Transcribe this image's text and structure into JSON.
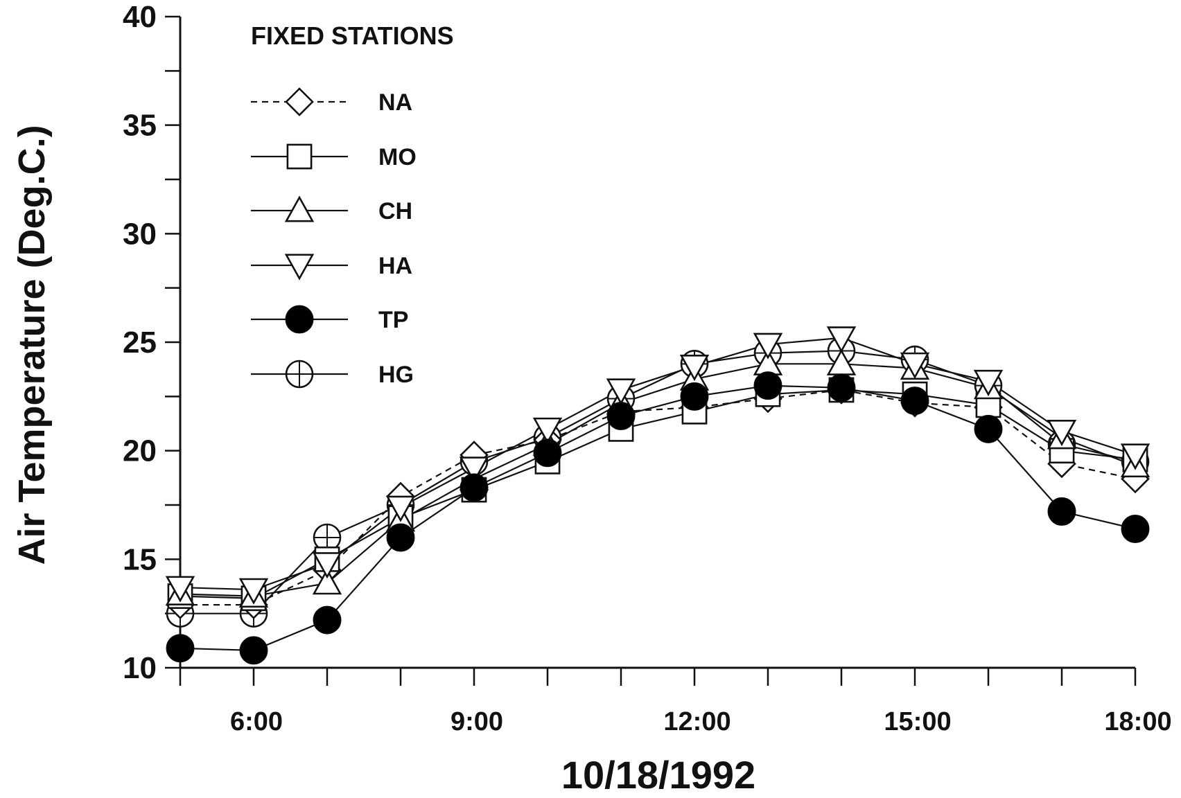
{
  "chart_data": {
    "type": "line",
    "xlabel": "10/18/1992",
    "ylabel": "Air Temperature (Deg.C.)",
    "x_unit": "hour of day",
    "xlim": [
      5,
      18
    ],
    "ylim": [
      10,
      40
    ],
    "x_ticks": [
      {
        "value": 6,
        "label": "6:00"
      },
      {
        "value": 9,
        "label": "9:00"
      },
      {
        "value": 12,
        "label": "12:00"
      },
      {
        "value": 15,
        "label": "15:00"
      },
      {
        "value": 18,
        "label": "18:00"
      }
    ],
    "y_ticks": [
      {
        "value": 10,
        "label": "10"
      },
      {
        "value": 15,
        "label": "15"
      },
      {
        "value": 20,
        "label": "20"
      },
      {
        "value": 25,
        "label": "25"
      },
      {
        "value": 30,
        "label": "30"
      },
      {
        "value": 35,
        "label": "35"
      },
      {
        "value": 40,
        "label": "40"
      }
    ],
    "x_minor_step": 1,
    "y_minor_step": 2.5,
    "grid": false,
    "legend": {
      "title": "FIXED STATIONS",
      "position": "top-left"
    },
    "series": [
      {
        "name": "NA",
        "marker": "diamond-open",
        "line": "dashed",
        "x": [
          5,
          6,
          7,
          8,
          9,
          10,
          11,
          12,
          13,
          14,
          15,
          16,
          17,
          18
        ],
        "values": [
          12.9,
          12.9,
          14.5,
          17.9,
          19.8,
          20.5,
          21.8,
          22.0,
          22.4,
          22.8,
          22.2,
          22.0,
          19.4,
          18.7
        ]
      },
      {
        "name": "MO",
        "marker": "square-open",
        "line": "solid",
        "x": [
          5,
          6,
          7,
          8,
          9,
          10,
          11,
          12,
          13,
          14,
          15,
          16,
          17,
          18
        ],
        "values": [
          13.3,
          13.2,
          15.0,
          16.9,
          18.2,
          19.5,
          21.0,
          21.8,
          22.6,
          22.8,
          22.6,
          22.1,
          20.0,
          19.6
        ]
      },
      {
        "name": "CH",
        "marker": "triangle-up-open",
        "line": "solid",
        "x": [
          5,
          6,
          7,
          8,
          9,
          10,
          11,
          12,
          13,
          14,
          15,
          16,
          17,
          18
        ],
        "values": [
          13.4,
          13.3,
          13.9,
          16.8,
          18.7,
          20.3,
          22.2,
          23.3,
          24.0,
          24.0,
          23.8,
          22.9,
          20.6,
          19.3
        ]
      },
      {
        "name": "HA",
        "marker": "triangle-down-open",
        "line": "solid",
        "x": [
          5,
          6,
          7,
          8,
          9,
          10,
          11,
          12,
          13,
          14,
          15,
          16,
          17,
          18
        ],
        "values": [
          13.7,
          13.6,
          14.8,
          17.4,
          19.2,
          21.0,
          22.8,
          23.9,
          24.9,
          25.2,
          24.0,
          23.2,
          20.9,
          19.8
        ]
      },
      {
        "name": "TP",
        "marker": "circle-filled",
        "line": "solid",
        "x": [
          5,
          6,
          7,
          8,
          9,
          10,
          11,
          12,
          13,
          14,
          15,
          16,
          17,
          18
        ],
        "values": [
          10.9,
          10.8,
          12.2,
          16.0,
          18.3,
          19.9,
          21.6,
          22.5,
          23.0,
          22.9,
          22.3,
          21.0,
          17.2,
          16.4
        ]
      },
      {
        "name": "HG",
        "marker": "circle-cross",
        "line": "solid",
        "x": [
          5,
          6,
          7,
          8,
          9,
          10,
          11,
          12,
          13,
          14,
          15,
          16,
          17,
          18
        ],
        "values": [
          12.5,
          12.5,
          16.0,
          17.5,
          19.5,
          20.6,
          22.4,
          24.0,
          24.5,
          24.6,
          24.2,
          23.0,
          20.3,
          19.5
        ]
      }
    ]
  }
}
